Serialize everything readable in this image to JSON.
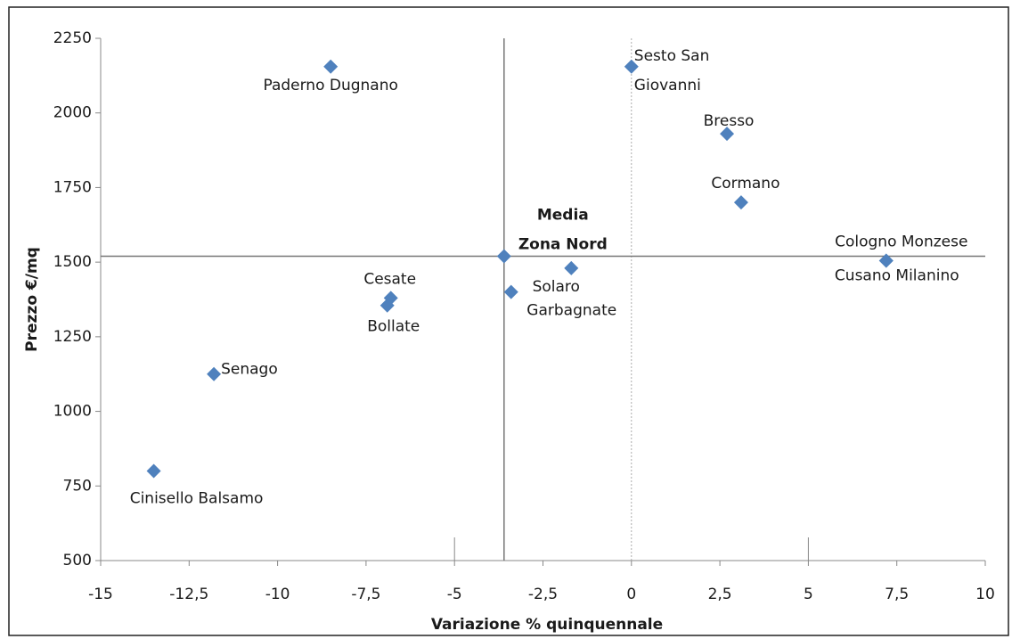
{
  "chart_data": {
    "type": "scatter",
    "x_label": "Variazione % quinquennale",
    "y_label": "Prezzo €/mq",
    "color": "#4f81bd",
    "labels": [
      [
        "Paderno Dugnano"
      ],
      [
        "Sesto San",
        "Giovanni"
      ],
      [
        "Bresso"
      ],
      [
        "Cormano"
      ],
      [
        "Cologno Monzese"
      ],
      [
        "Cusano Milanino"
      ],
      [
        "Media",
        "Zona Nord"
      ],
      [
        "Solaro"
      ],
      [
        "Garbagnate"
      ],
      [
        "Cesate"
      ],
      [
        "Bollate"
      ],
      [
        "Senago"
      ],
      [
        "Cinisello Balsamo"
      ]
    ],
    "x": [
      -8.5,
      0,
      2.7,
      3.1,
      7.2,
      7.2,
      -3.6,
      -1.7,
      -3.4,
      -6.8,
      -6.9,
      -11.8,
      -13.5
    ],
    "values": [
      2155,
      2155,
      1930,
      1700,
      1505,
      1505,
      1520,
      1480,
      1400,
      1380,
      1355,
      1125,
      800
    ],
    "reference_index": 6,
    "xlim": [
      -15,
      10
    ],
    "xticks": [
      -15,
      {
        "value": -12.5,
        "label": "-12,5"
      },
      -10,
      {
        "value": -7.5,
        "label": "-7,5"
      },
      -5,
      {
        "value": -2.5,
        "label": "-2,5"
      },
      0,
      {
        "value": 2.5,
        "label": "2,5"
      },
      5,
      {
        "value": 7.5,
        "label": "7,5"
      },
      10
    ],
    "ylim": [
      500,
      2250
    ],
    "yticks": [
      500,
      750,
      1000,
      1250,
      1500,
      1750,
      2000,
      2250
    ]
  }
}
